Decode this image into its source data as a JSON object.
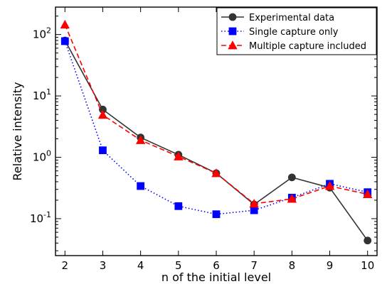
{
  "chart_data": {
    "type": "line",
    "xlabel": "n of the initial level",
    "ylabel": "Relative intensity",
    "x": [
      2,
      3,
      4,
      5,
      6,
      7,
      8,
      9,
      10
    ],
    "xlim": [
      1.75,
      10.25
    ],
    "ylim": [
      0.025,
      280
    ],
    "yscale": "log",
    "x_ticks": [
      "2",
      "3",
      "4",
      "5",
      "6",
      "7",
      "8",
      "9",
      "10"
    ],
    "y_ticks": [
      {
        "base": "10",
        "exp": "2",
        "value": 100
      },
      {
        "base": "10",
        "exp": "1",
        "value": 10
      },
      {
        "base": "10",
        "exp": "0",
        "value": 1
      },
      {
        "base": "10",
        "exp": "-1",
        "value": 0.1
      }
    ],
    "grid": false,
    "legend_position": "top-right",
    "series": [
      {
        "name": "Experimental data",
        "color": "#333333",
        "marker": "circle",
        "line_style": "solid",
        "values": [
          80,
          6.0,
          2.1,
          1.1,
          0.55,
          0.17,
          0.47,
          0.32,
          0.044
        ]
      },
      {
        "name": "Single capture only",
        "color": "#0000ff",
        "marker": "square",
        "line_style": "dotted",
        "values": [
          78,
          1.3,
          0.34,
          0.16,
          0.118,
          0.137,
          0.22,
          0.37,
          0.27
        ]
      },
      {
        "name": "Multiple capture included",
        "color": "#ff0000",
        "marker": "triangle",
        "line_style": "dashed",
        "values": [
          145,
          4.9,
          1.9,
          1.03,
          0.55,
          0.175,
          0.21,
          0.34,
          0.25
        ]
      }
    ]
  }
}
